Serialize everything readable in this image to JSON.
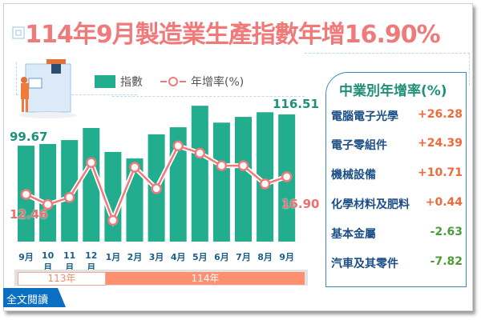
{
  "title": "114年9月製造業生產指數年增16.90%",
  "legend": {
    "index_label": "指數",
    "rate_label": "年增率(%)"
  },
  "labels": {
    "first_index": "99.67",
    "last_index": "116.51",
    "first_rate": "12.46",
    "last_rate": "16.90"
  },
  "months": [
    "9月",
    "10月",
    "11月",
    "12月",
    "1月",
    "2月",
    "3月",
    "4月",
    "5月",
    "6月",
    "7月",
    "8月",
    "9月"
  ],
  "years": {
    "y113": "113年",
    "y114": "114年"
  },
  "read_all": "全文閱讀",
  "panel": {
    "title": "中業別年增率(%)",
    "rows": [
      {
        "name": "電腦電子光學",
        "value": "+26.28",
        "sign": "pos"
      },
      {
        "name": "電子零組件",
        "value": "+24.39",
        "sign": "pos"
      },
      {
        "name": "機械設備",
        "value": "+10.71",
        "sign": "pos"
      },
      {
        "name": "化學材料及肥料",
        "value": "+0.44",
        "sign": "pos"
      },
      {
        "name": "基本金屬",
        "value": "-2.63",
        "sign": "neg"
      },
      {
        "name": "汽車及其零件",
        "value": "-7.82",
        "sign": "neg"
      }
    ]
  },
  "colors": {
    "bar": "#22ad8f",
    "line": "#f07a7a",
    "title": "#f07a7a",
    "positive": "#ef6b3a",
    "negative": "#4f9a3a",
    "year114": "#fc9070"
  },
  "chart_data": {
    "type": "bar+line",
    "title": "114年9月製造業生產指數年增16.90%",
    "categories": [
      "113年9月",
      "113年10月",
      "113年11月",
      "113年12月",
      "114年1月",
      "114年2月",
      "114年3月",
      "114年4月",
      "114年5月",
      "114年6月",
      "114年7月",
      "114年8月",
      "114年9月"
    ],
    "series": [
      {
        "name": "指數",
        "type": "bar",
        "values": [
          99.67,
          100.6,
          102.7,
          109.2,
          96.3,
          92.8,
          105.8,
          109.6,
          121.2,
          112.1,
          115.2,
          117.7,
          116.51
        ]
      },
      {
        "name": "年增率(%)",
        "type": "line",
        "values": [
          12.46,
          9.9,
          11.7,
          20.5,
          5.9,
          19.3,
          13.9,
          24.7,
          22.9,
          19.7,
          19.7,
          15.1,
          16.9
        ]
      }
    ],
    "annotations": [
      "99.67",
      "116.51",
      "12.46",
      "16.90"
    ],
    "side_table": {
      "title": "中業別年增率(%)",
      "rows": [
        [
          "電腦電子光學",
          26.28
        ],
        [
          "電子零組件",
          24.39
        ],
        [
          "機械設備",
          10.71
        ],
        [
          "化學材料及肥料",
          0.44
        ],
        [
          "基本金屬",
          -2.63
        ],
        [
          "汽車及其零件",
          -7.82
        ]
      ]
    },
    "xlabel": "",
    "ylabel": "",
    "grid": false,
    "legend_position": "top"
  }
}
